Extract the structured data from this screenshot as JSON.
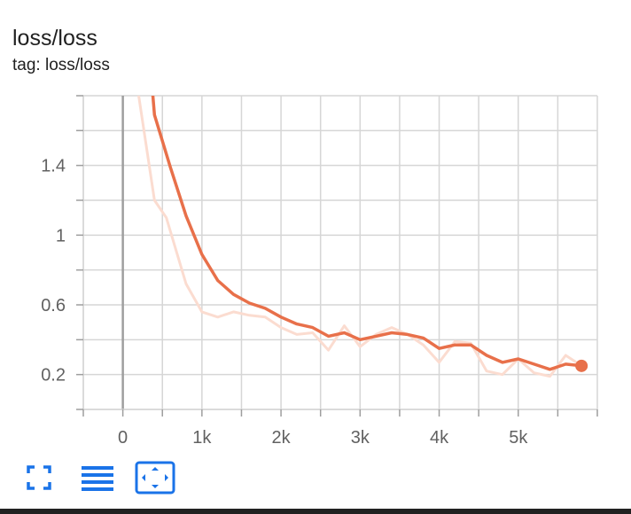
{
  "card": {
    "title": "loss/loss",
    "subtitle": "tag: loss/loss"
  },
  "toolbar": {
    "fullscreen_icon": "fullscreen-icon",
    "log_scale_icon": "lines-icon",
    "fit_domain_icon": "fit-domain-icon"
  },
  "colors": {
    "smoothed": "#e8704a",
    "raw": "#fbdcd0",
    "grid": "#d6d6d6",
    "zero_line": "#9e9e9e",
    "toolbar_icon": "#1a73e8"
  },
  "chart_data": {
    "type": "line",
    "title": "loss/loss",
    "xlabel": "",
    "ylabel": "",
    "xlim": [
      -500,
      6000
    ],
    "ylim": [
      0,
      1.8
    ],
    "x_ticks": [
      0,
      1000,
      2000,
      3000,
      4000,
      5000
    ],
    "x_tick_labels": [
      "0",
      "1k",
      "2k",
      "3k",
      "4k",
      "5k"
    ],
    "y_ticks": [
      0.2,
      0.6,
      1,
      1.4
    ],
    "y_tick_labels": [
      "0.2",
      "0.6",
      "1",
      "1.4"
    ],
    "grid": true,
    "series": [
      {
        "style": "raw",
        "x": [
          200,
          400,
          550,
          800,
          1000,
          1200,
          1400,
          1600,
          1800,
          2000,
          2200,
          2400,
          2600,
          2800,
          3000,
          3200,
          3400,
          3600,
          3800,
          4000,
          4200,
          4400,
          4600,
          4800,
          5000,
          5200,
          5400,
          5600,
          5800
        ],
        "y": [
          1.8,
          1.2,
          1.1,
          0.72,
          0.56,
          0.53,
          0.56,
          0.54,
          0.53,
          0.47,
          0.43,
          0.44,
          0.34,
          0.48,
          0.36,
          0.43,
          0.47,
          0.43,
          0.37,
          0.27,
          0.39,
          0.38,
          0.22,
          0.2,
          0.29,
          0.21,
          0.19,
          0.31,
          0.25
        ]
      },
      {
        "style": "smoothed",
        "x": [
          380,
          400,
          600,
          800,
          1000,
          1200,
          1400,
          1600,
          1800,
          2000,
          2200,
          2400,
          2600,
          2800,
          3000,
          3200,
          3400,
          3600,
          3800,
          4000,
          4200,
          4400,
          4600,
          4800,
          5000,
          5200,
          5400,
          5600,
          5800
        ],
        "y": [
          1.8,
          1.69,
          1.39,
          1.11,
          0.89,
          0.74,
          0.66,
          0.61,
          0.58,
          0.53,
          0.49,
          0.47,
          0.42,
          0.44,
          0.4,
          0.42,
          0.44,
          0.43,
          0.41,
          0.35,
          0.37,
          0.37,
          0.31,
          0.27,
          0.29,
          0.26,
          0.23,
          0.26,
          0.25
        ]
      }
    ]
  }
}
